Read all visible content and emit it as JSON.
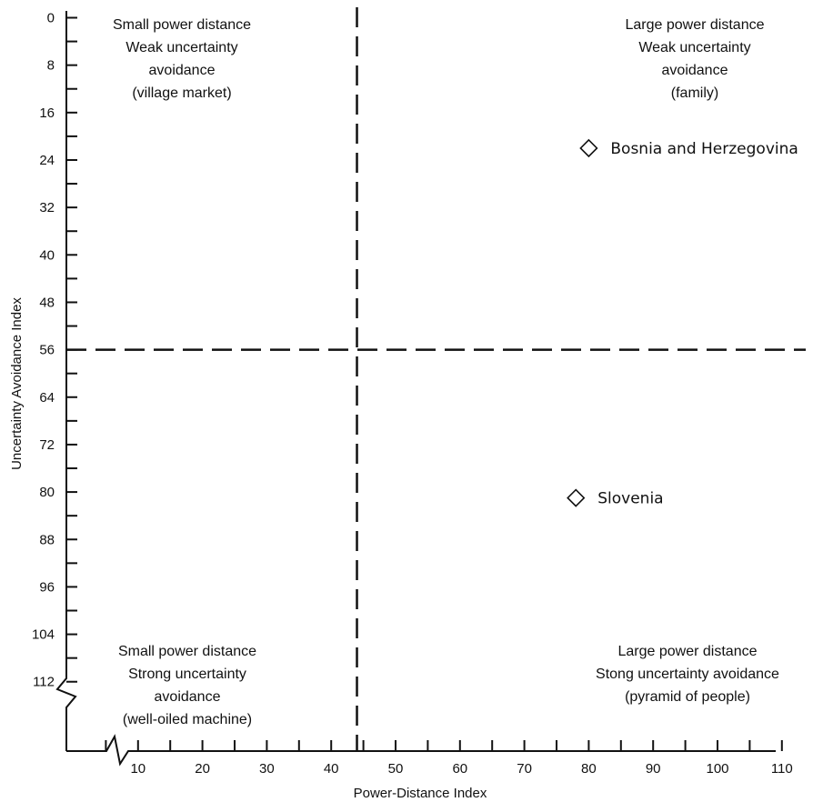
{
  "chart_data": {
    "type": "scatter",
    "xlabel": "Power-Distance Index",
    "ylabel": "Uncertainty Avoidance Index",
    "xlim": [
      0,
      110
    ],
    "ylim": [
      0,
      112
    ],
    "y_inverted": true,
    "x_axis_break": true,
    "y_axis_break": true,
    "x_ticks": [
      "10",
      "20",
      "30",
      "40",
      "50",
      "60",
      "70",
      "80",
      "90",
      "100",
      "110"
    ],
    "y_ticks": [
      "0",
      "8",
      "16",
      "24",
      "32",
      "40",
      "48",
      "56",
      "64",
      "72",
      "80",
      "88",
      "96",
      "104",
      "112"
    ],
    "dividers": {
      "x": 44,
      "y": 56
    },
    "points": [
      {
        "label": "Bosnia and Herzegovina",
        "x": 80,
        "y": 22
      },
      {
        "label": "Slovenia",
        "x": 78,
        "y": 81
      }
    ],
    "quadrants": [
      {
        "position": "top-left",
        "lines": [
          "Small power distance",
          "Weak uncertainty",
          "avoidance",
          "(village market)"
        ]
      },
      {
        "position": "top-right",
        "lines": [
          "Large power distance",
          "Weak uncertainty",
          "avoidance",
          "(family)"
        ]
      },
      {
        "position": "bottom-left",
        "lines": [
          "Small power distance",
          "Strong uncertainty",
          "avoidance",
          "(well-oiled machine)"
        ]
      },
      {
        "position": "bottom-right",
        "lines": [
          "Large power distance",
          "Stong uncertainty avoidance",
          "(pyramid of people)"
        ]
      }
    ],
    "grid": false,
    "marker": "diamond"
  }
}
